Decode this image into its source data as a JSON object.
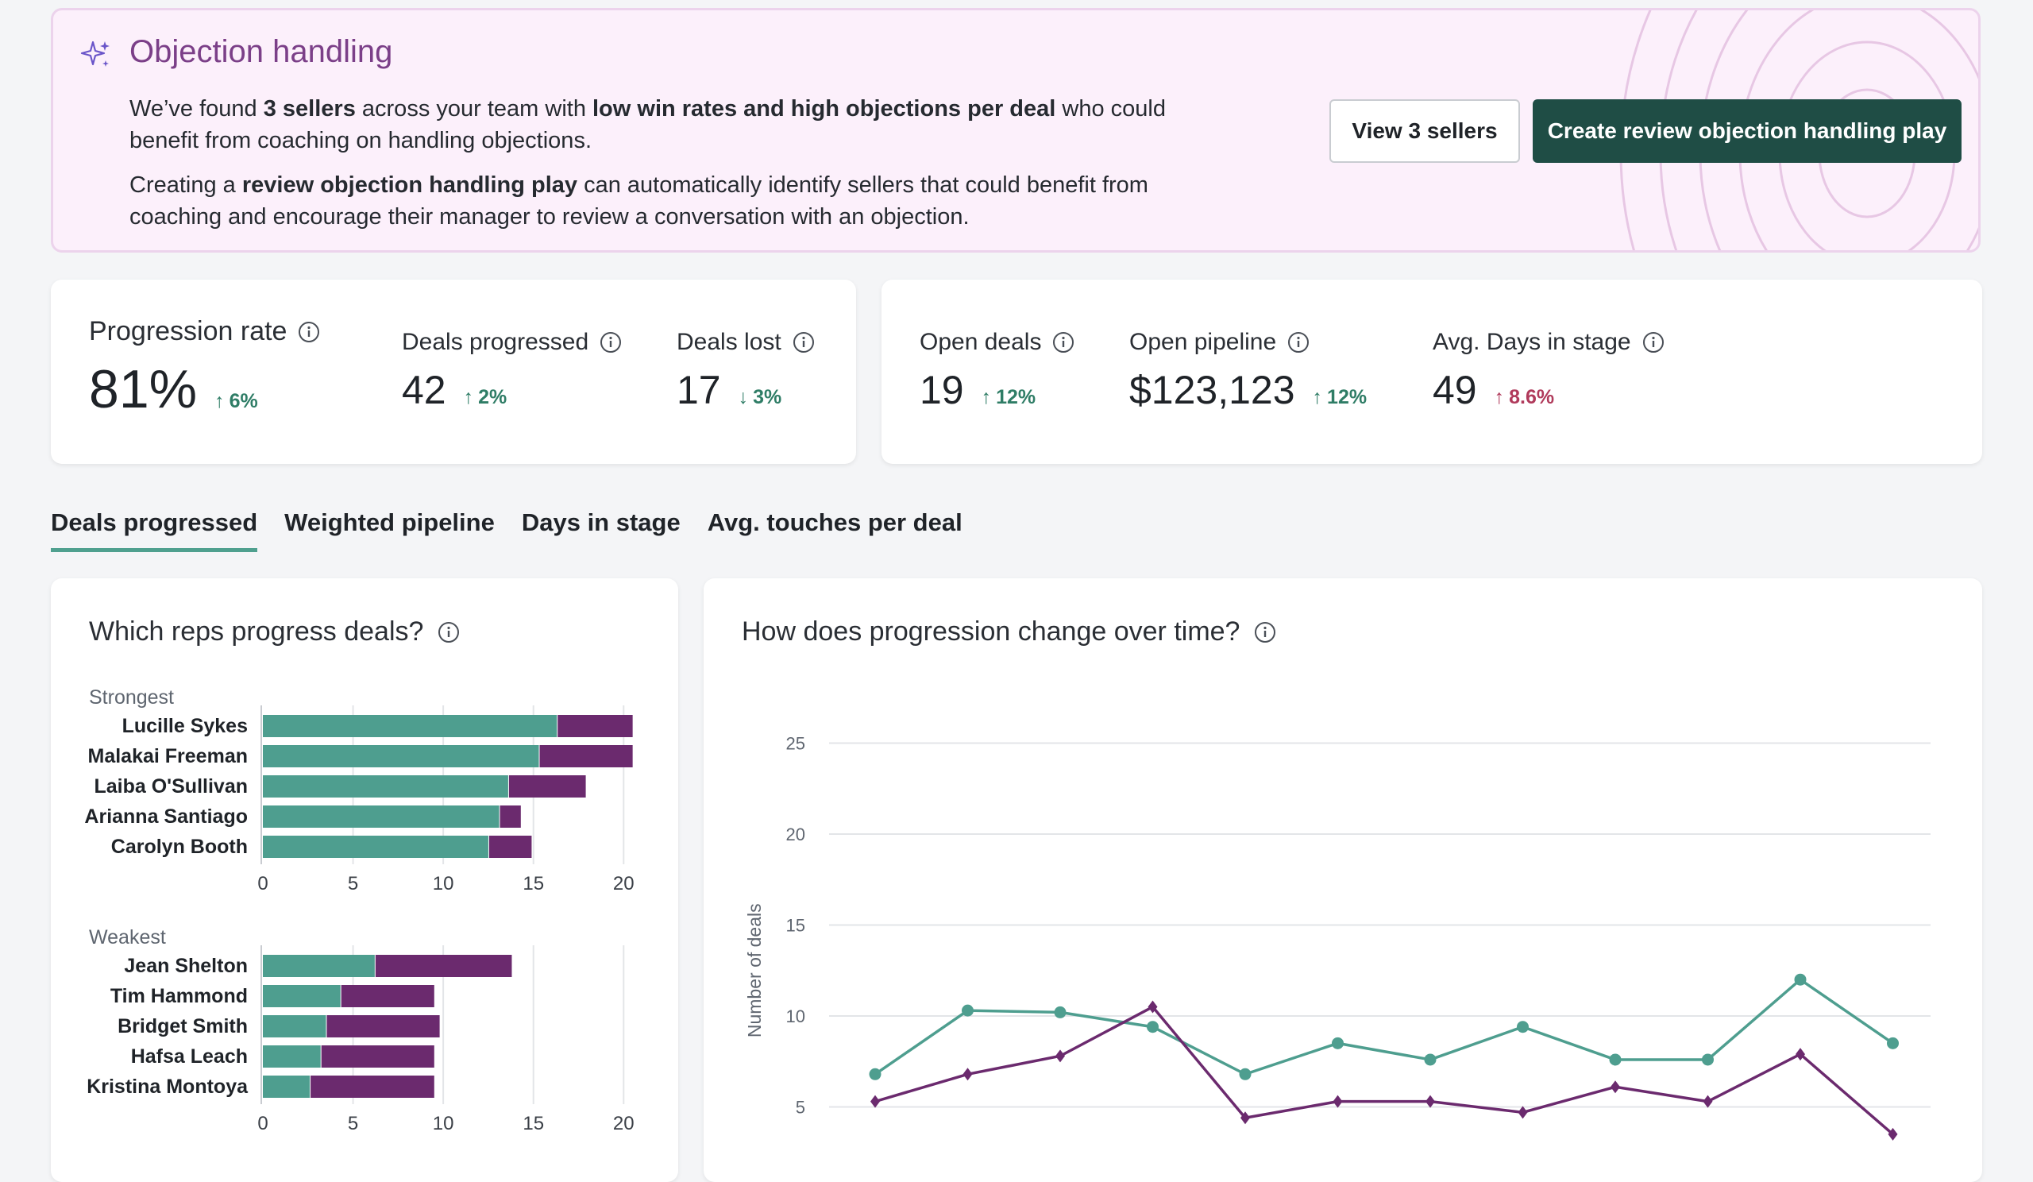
{
  "banner": {
    "title": "Objection handling",
    "p1_pre": "We’ve found ",
    "p1_b1": "3 sellers",
    "p1_mid": " across your team with ",
    "p1_b2": "low win rates and high objections per deal",
    "p1_post": " who could benefit from coaching on handling objections.",
    "p2_pre": "Creating a ",
    "p2_b1": "review objection handling play",
    "p2_post": " can automatically identify sellers that could benefit from coaching and encourage their manager to review a conversation with an objection.",
    "view_button": "View 3 sellers",
    "create_button": "Create review objection handling play"
  },
  "metrics_left": {
    "progression_rate": {
      "label": "Progression rate",
      "value": "81%",
      "delta": "6%",
      "dir": "up"
    },
    "deals_progressed": {
      "label": "Deals progressed",
      "value": "42",
      "delta": "2%",
      "dir": "up"
    },
    "deals_lost": {
      "label": "Deals lost",
      "value": "17",
      "delta": "3%",
      "dir": "down"
    }
  },
  "metrics_right": {
    "open_deals": {
      "label": "Open deals",
      "value": "19",
      "delta": "12%",
      "dir": "up"
    },
    "open_pipeline": {
      "label": "Open pipeline",
      "value": "$123,123",
      "delta": "12%",
      "dir": "up"
    },
    "avg_days": {
      "label": "Avg. Days in stage",
      "value": "49",
      "delta": "8.6%",
      "dir": "up"
    }
  },
  "tabs": [
    {
      "label": "Deals progressed",
      "active": true
    },
    {
      "label": "Weighted pipeline",
      "active": false
    },
    {
      "label": "Days in stage",
      "active": false
    },
    {
      "label": "Avg. touches per deal",
      "active": false
    }
  ],
  "colors": {
    "teal": "#4e9e8f",
    "purple": "#6b2a6e",
    "accent": "#1f4d45",
    "banner_title": "#7b3f88"
  },
  "reps_panel": {
    "title": "Which reps progress deals?"
  },
  "time_panel": {
    "title": "How does progression change over time?"
  },
  "chart_data": [
    {
      "type": "bar",
      "orientation": "horizontal",
      "stacked": true,
      "group": "Strongest",
      "categories": [
        "Lucille Sykes",
        "Malakai Freeman",
        "Laiba O'Sullivan",
        "Arianna Santiago",
        "Carolyn Booth"
      ],
      "series": [
        {
          "values": [
            16.3,
            15.3,
            13.6,
            13.1,
            12.5
          ]
        },
        {
          "values": [
            4.2,
            5.2,
            4.3,
            1.2,
            2.4
          ]
        }
      ],
      "xticks": [
        0,
        5,
        10,
        15,
        20
      ],
      "xlim": [
        0,
        21
      ]
    },
    {
      "type": "bar",
      "orientation": "horizontal",
      "stacked": true,
      "group": "Weakest",
      "categories": [
        "Jean Shelton",
        "Tim Hammond",
        "Bridget Smith",
        "Hafsa Leach",
        "Kristina Montoya"
      ],
      "series": [
        {
          "values": [
            6.2,
            4.3,
            3.5,
            3.2,
            2.6
          ]
        },
        {
          "values": [
            7.6,
            5.2,
            6.3,
            6.3,
            6.9
          ]
        }
      ],
      "xticks": [
        0,
        5,
        10,
        15,
        20
      ],
      "xlim": [
        0,
        21
      ]
    },
    {
      "type": "line",
      "ylabel": "Number of deals",
      "yticks": [
        5,
        10,
        15,
        20,
        25
      ],
      "x": [
        1,
        2,
        3,
        4,
        5,
        6,
        7,
        8,
        9,
        10,
        11,
        12
      ],
      "series": [
        {
          "values": [
            6.8,
            10.3,
            10.2,
            9.4,
            6.8,
            8.5,
            7.6,
            9.4,
            7.6,
            7.6,
            12.0,
            8.5
          ]
        },
        {
          "values": [
            5.3,
            6.8,
            7.8,
            10.5,
            4.4,
            5.3,
            5.3,
            4.7,
            6.1,
            5.3,
            7.9,
            3.5
          ]
        }
      ]
    }
  ]
}
